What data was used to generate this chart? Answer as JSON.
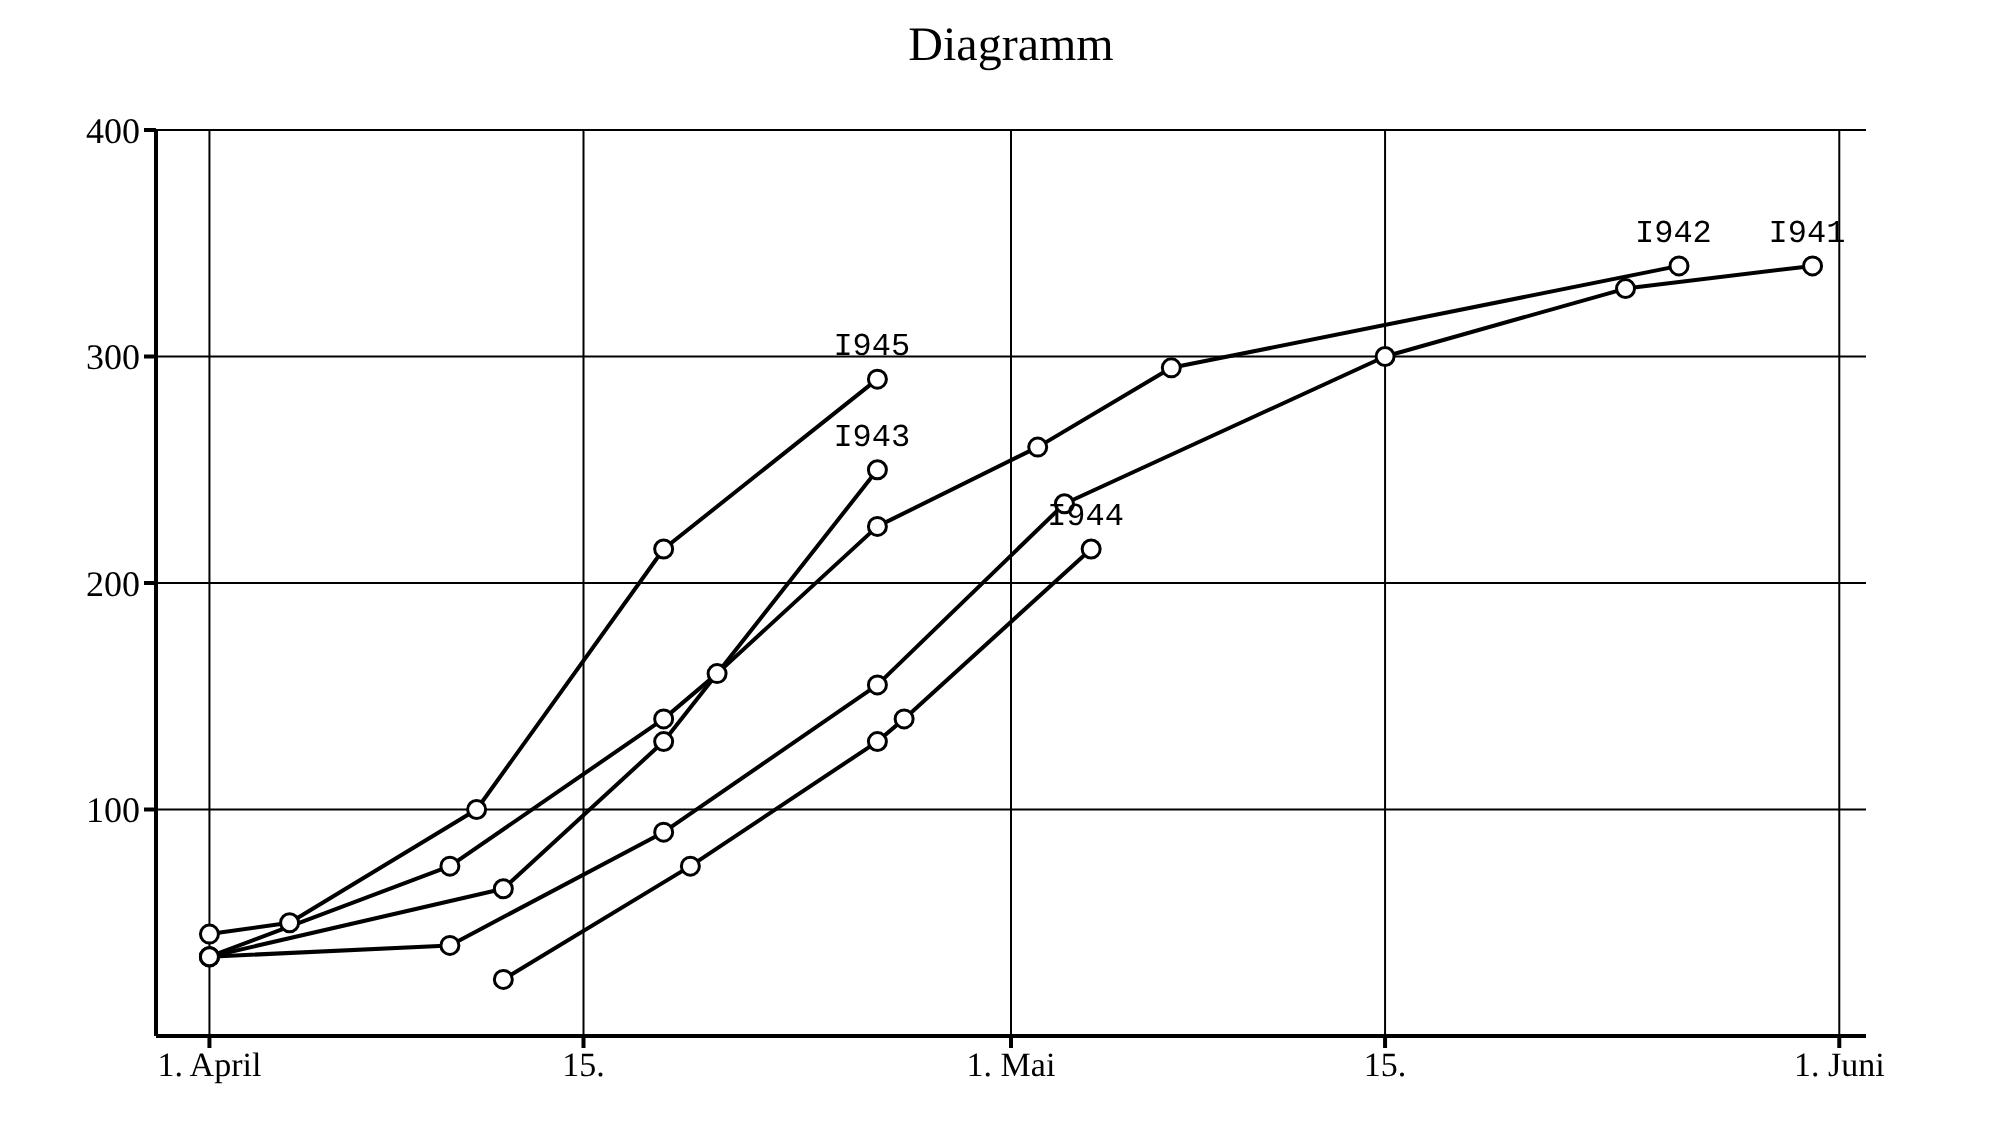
{
  "chart_data": {
    "type": "line",
    "title": "Diagramm",
    "xlim": [
      "--03-30",
      "--06-02"
    ],
    "xticks": [
      {
        "value": "--04-01",
        "label": "1. April"
      },
      {
        "value": "--04-15",
        "label": "15."
      },
      {
        "value": "--05-01",
        "label": "1. Mai"
      },
      {
        "value": "--05-15",
        "label": "15."
      },
      {
        "value": "--06-01",
        "label": "1. Juni"
      }
    ],
    "ylim": [
      0,
      400
    ],
    "yticks": [
      100,
      200,
      300,
      400
    ],
    "grid": true,
    "marker": "circle",
    "line_style": "solid",
    "series": [
      {
        "name": "I945",
        "color": "#000000",
        "x": [
          "--04-01",
          "--04-04",
          "--04-11",
          "--04-18",
          "--04-26"
        ],
        "values": [
          45,
          50,
          100,
          215,
          290
        ]
      },
      {
        "name": "I943",
        "color": "#000000",
        "x": [
          "--04-01",
          "--04-12",
          "--04-18",
          "--04-26"
        ],
        "values": [
          35,
          65,
          130,
          250
        ]
      },
      {
        "name": "I944",
        "color": "#000000",
        "x": [
          "--04-12",
          "--04-19",
          "--04-26",
          "--04-27",
          "--05-04"
        ],
        "values": [
          25,
          75,
          130,
          140,
          215
        ]
      },
      {
        "name": "I942",
        "color": "#000000",
        "x": [
          "--04-01",
          "--04-10",
          "--04-18",
          "--04-20",
          "--04-26",
          "--05-02",
          "--05-07",
          "--05-26"
        ],
        "values": [
          35,
          75,
          140,
          160,
          225,
          260,
          295,
          340
        ]
      },
      {
        "name": "I941",
        "color": "#000000",
        "x": [
          "--04-01",
          "--04-10",
          "--04-18",
          "--04-26",
          "--05-03",
          "--05-15",
          "--05-24",
          "--05-31"
        ],
        "values": [
          35,
          40,
          90,
          155,
          235,
          300,
          330,
          340
        ]
      }
    ]
  }
}
